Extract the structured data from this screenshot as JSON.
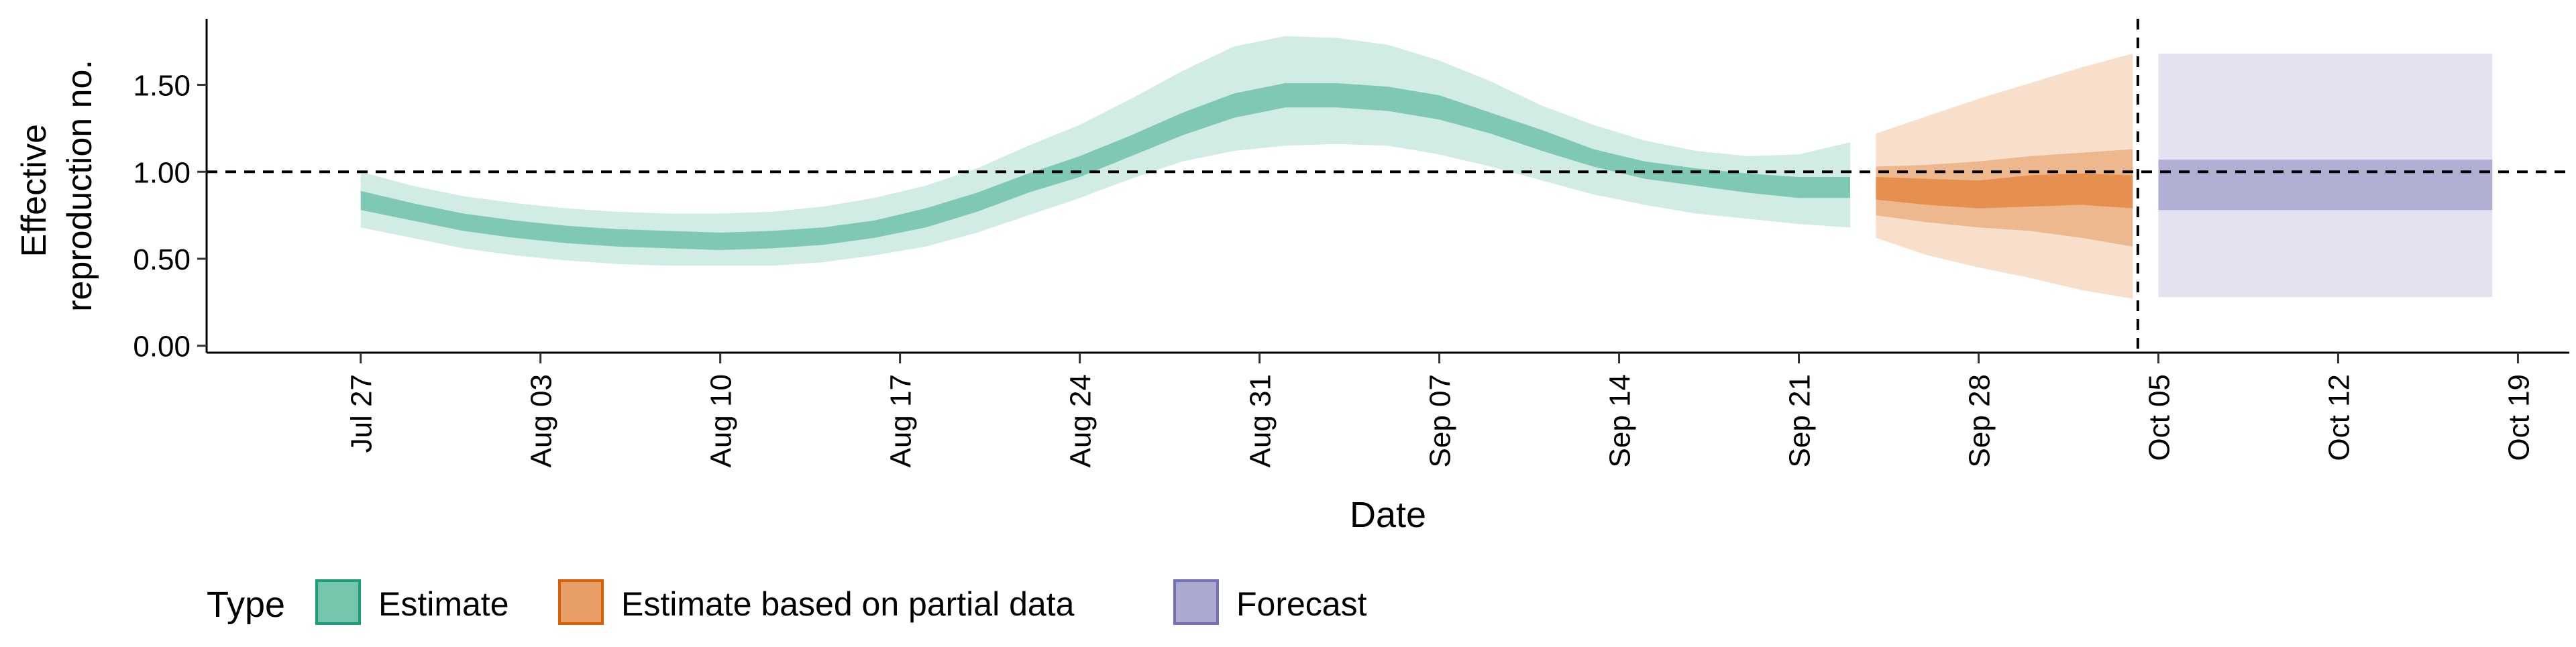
{
  "chart_data": {
    "type": "area",
    "title": "",
    "xlabel": "Date",
    "ylabel": "Effective reproduction no.",
    "ylabel_lines": [
      "Effective",
      "reproduction no."
    ],
    "x_start": "2020-07-20",
    "xlim": [
      "2020-07-21",
      "2020-10-21"
    ],
    "ylim": [
      -0.04,
      1.88
    ],
    "yticks": [
      0.0,
      0.5,
      1.0,
      1.5
    ],
    "ytick_labels": [
      "0.00",
      "0.50",
      "1.00",
      "1.50"
    ],
    "xticks": [
      "2020-07-27",
      "2020-08-03",
      "2020-08-10",
      "2020-08-17",
      "2020-08-24",
      "2020-08-31",
      "2020-09-07",
      "2020-09-14",
      "2020-09-21",
      "2020-09-28",
      "2020-10-05",
      "2020-10-12",
      "2020-10-19"
    ],
    "xtick_labels": [
      "Jul 27",
      "Aug 03",
      "Aug 10",
      "Aug 17",
      "Aug 24",
      "Aug 31",
      "Sep 07",
      "Sep 14",
      "Sep 21",
      "Sep 28",
      "Oct 05",
      "Oct 12",
      "Oct 19"
    ],
    "reference_line": {
      "y": 1.0,
      "style": "dashed"
    },
    "forecast_divider_date": "2020-10-04",
    "grid": false,
    "legend": {
      "position": "bottom",
      "title": "Type",
      "items": [
        {
          "label": "Estimate",
          "color": "#1b9e77"
        },
        {
          "label": "Estimate based on partial data",
          "color": "#d95f02"
        },
        {
          "label": "Forecast",
          "color": "#7570b3"
        }
      ]
    },
    "series": [
      {
        "name": "Estimate",
        "color": "#1b9e77",
        "dates": [
          "2020-07-27",
          "2020-07-29",
          "2020-07-31",
          "2020-08-02",
          "2020-08-04",
          "2020-08-06",
          "2020-08-08",
          "2020-08-10",
          "2020-08-12",
          "2020-08-14",
          "2020-08-16",
          "2020-08-18",
          "2020-08-20",
          "2020-08-22",
          "2020-08-24",
          "2020-08-26",
          "2020-08-28",
          "2020-08-30",
          "2020-09-01",
          "2020-09-03",
          "2020-09-05",
          "2020-09-07",
          "2020-09-09",
          "2020-09-11",
          "2020-09-13",
          "2020-09-15",
          "2020-09-17",
          "2020-09-19",
          "2020-09-21",
          "2020-09-23"
        ],
        "median": [
          0.84,
          0.77,
          0.71,
          0.67,
          0.64,
          0.62,
          0.61,
          0.6,
          0.61,
          0.63,
          0.67,
          0.73,
          0.82,
          0.93,
          1.03,
          1.15,
          1.28,
          1.38,
          1.44,
          1.44,
          1.42,
          1.37,
          1.28,
          1.18,
          1.08,
          1.01,
          0.97,
          0.94,
          0.91,
          0.91
        ],
        "lower_20": [
          0.78,
          0.72,
          0.66,
          0.62,
          0.59,
          0.57,
          0.56,
          0.55,
          0.56,
          0.58,
          0.62,
          0.68,
          0.77,
          0.88,
          0.97,
          1.09,
          1.21,
          1.31,
          1.37,
          1.37,
          1.35,
          1.3,
          1.22,
          1.12,
          1.03,
          0.96,
          0.92,
          0.88,
          0.85,
          0.85
        ],
        "upper_20": [
          0.89,
          0.82,
          0.76,
          0.72,
          0.69,
          0.67,
          0.66,
          0.65,
          0.66,
          0.68,
          0.72,
          0.79,
          0.88,
          0.99,
          1.09,
          1.21,
          1.34,
          1.45,
          1.51,
          1.51,
          1.49,
          1.44,
          1.34,
          1.24,
          1.13,
          1.06,
          1.02,
          0.99,
          0.97,
          0.97
        ],
        "lower_90": [
          0.68,
          0.62,
          0.56,
          0.52,
          0.49,
          0.47,
          0.46,
          0.46,
          0.46,
          0.48,
          0.52,
          0.57,
          0.65,
          0.75,
          0.85,
          0.96,
          1.06,
          1.12,
          1.15,
          1.16,
          1.15,
          1.1,
          1.03,
          0.95,
          0.87,
          0.81,
          0.76,
          0.73,
          0.7,
          0.68
        ],
        "upper_90": [
          1.0,
          0.92,
          0.86,
          0.82,
          0.79,
          0.77,
          0.76,
          0.76,
          0.77,
          0.8,
          0.85,
          0.92,
          1.02,
          1.15,
          1.27,
          1.42,
          1.58,
          1.72,
          1.78,
          1.77,
          1.73,
          1.64,
          1.52,
          1.38,
          1.27,
          1.18,
          1.12,
          1.09,
          1.1,
          1.17
        ]
      },
      {
        "name": "Estimate based on partial data",
        "color": "#d95f02",
        "dates": [
          "2020-09-24",
          "2020-09-26",
          "2020-09-28",
          "2020-09-30",
          "2020-10-02",
          "2020-10-04"
        ],
        "median": [
          0.91,
          0.88,
          0.86,
          0.88,
          0.89,
          0.88
        ],
        "lower_20": [
          0.84,
          0.81,
          0.79,
          0.8,
          0.81,
          0.79
        ],
        "upper_20": [
          0.97,
          0.96,
          0.95,
          0.98,
          0.99,
          0.98
        ],
        "lower_50": [
          0.75,
          0.71,
          0.68,
          0.66,
          0.62,
          0.57
        ],
        "upper_50": [
          1.03,
          1.04,
          1.06,
          1.09,
          1.11,
          1.13
        ],
        "lower_90": [
          0.62,
          0.52,
          0.45,
          0.39,
          0.32,
          0.27
        ],
        "upper_90": [
          1.22,
          1.32,
          1.42,
          1.51,
          1.6,
          1.68
        ]
      },
      {
        "name": "Forecast",
        "color": "#7570b3",
        "dates": [
          "2020-10-05",
          "2020-10-18"
        ],
        "median": [
          0.92,
          0.92
        ],
        "lower_20": [
          0.78,
          0.78
        ],
        "upper_20": [
          1.07,
          1.07
        ],
        "lower_90": [
          0.28,
          0.28
        ],
        "upper_90": [
          1.68,
          1.68
        ]
      }
    ]
  }
}
